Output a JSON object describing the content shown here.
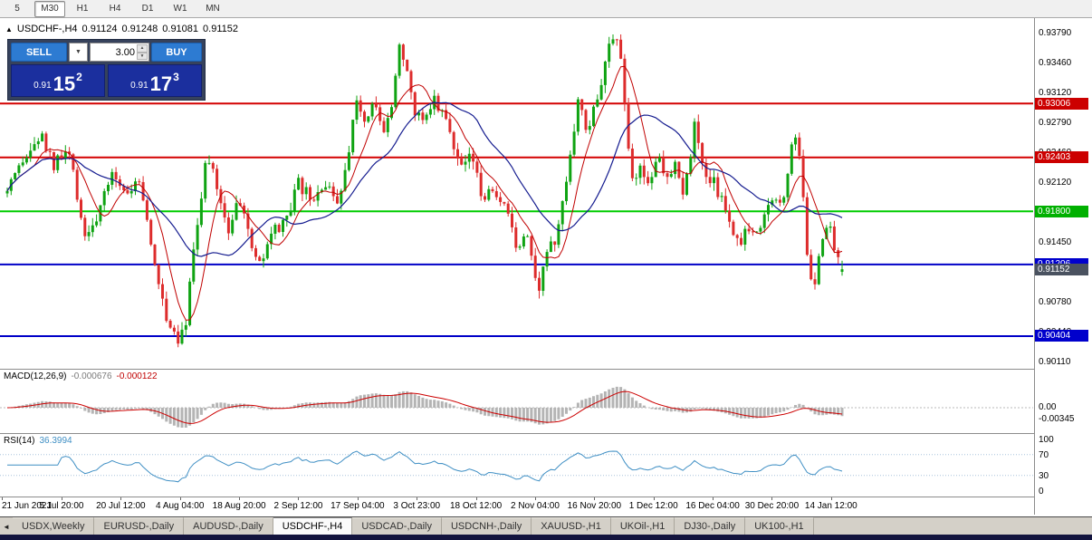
{
  "toolbar": {
    "timeframes": [
      {
        "label": "5",
        "active": false
      },
      {
        "label": "M30",
        "active": true
      },
      {
        "label": "H1",
        "active": false
      },
      {
        "label": "H4",
        "active": false
      },
      {
        "label": "D1",
        "active": false
      },
      {
        "label": "W1",
        "active": false
      },
      {
        "label": "MN",
        "active": false
      }
    ]
  },
  "chart_header": {
    "collapse_icon": "▲",
    "symbol": "USDCHF-,H4",
    "open": "0.91124",
    "high": "0.91248",
    "low": "0.91081",
    "close": "0.91152"
  },
  "trade_panel": {
    "sell_label": "SELL",
    "buy_label": "BUY",
    "order_combo_icon": "▼",
    "lot_value": "3.00",
    "lot_spin_up": "▲",
    "lot_spin_down": "▼",
    "sell_price_small": "0.91",
    "sell_price_big": "15",
    "sell_price_sup": "2",
    "buy_price_small": "0.91",
    "buy_price_big": "17",
    "buy_price_sup": "3"
  },
  "price_axis": {
    "labels": [
      "0.93790",
      "0.93460",
      "0.93120",
      "0.92790",
      "0.92460",
      "0.92120",
      "0.91790",
      "0.91450",
      "0.91120",
      "0.90780",
      "0.90440",
      "0.90110"
    ],
    "tags": [
      {
        "value": "0.93006",
        "price": 0.93006,
        "color": "#cc0000"
      },
      {
        "value": "0.92403",
        "price": 0.92403,
        "color": "#cc0000"
      },
      {
        "value": "0.91800",
        "price": 0.918,
        "color": "#00b000"
      },
      {
        "value": "0.91206",
        "price": 0.91206,
        "color": "#0000cc"
      },
      {
        "value": "0.91152",
        "price": 0.91152,
        "color": "#4a5260"
      },
      {
        "value": "0.90404",
        "price": 0.90404,
        "color": "#0000cc"
      }
    ]
  },
  "indicators": {
    "macd": {
      "label": "MACD(12,26,9)",
      "main_value": "-0.000676",
      "signal_value": "-0.000122",
      "axis_labels": [
        "0.00",
        "-0.00345"
      ]
    },
    "rsi": {
      "label": "RSI(14)",
      "value": "36.3994",
      "axis_labels": [
        "100",
        "70",
        "30",
        "0"
      ]
    }
  },
  "time_axis": {
    "labels": [
      "21 Jun 2021",
      "5 Jul 20:00",
      "20 Jul 12:00",
      "4 Aug 04:00",
      "18 Aug 20:00",
      "2 Sep 12:00",
      "17 Sep 04:00",
      "3 Oct 23:00",
      "18 Oct 12:00",
      "2 Nov 04:00",
      "16 Nov 20:00",
      "1 Dec 12:00",
      "16 Dec 04:00",
      "30 Dec 20:00",
      "14 Jan 12:00"
    ]
  },
  "tab_bar": {
    "scroll_left_icon": "◄",
    "tabs": [
      {
        "label": "USDX,Weekly",
        "active": false
      },
      {
        "label": "EURUSD-,Daily",
        "active": false
      },
      {
        "label": "AUDUSD-,Daily",
        "active": false
      },
      {
        "label": "USDCHF-,H4",
        "active": true
      },
      {
        "label": "USDCAD-,Daily",
        "active": false
      },
      {
        "label": "USDCNH-,Daily",
        "active": false
      },
      {
        "label": "XAUUSD-,H1",
        "active": false
      },
      {
        "label": "UKOil-,H1",
        "active": false
      },
      {
        "label": "DJ30-,Daily",
        "active": false
      },
      {
        "label": "UK100-,H1",
        "active": false
      }
    ]
  },
  "chart_data": {
    "type": "candlestick",
    "symbol": "USDCHF-",
    "timeframe": "H4",
    "ohlc_current": {
      "open": 0.91124,
      "high": 0.91248,
      "low": 0.91081,
      "close": 0.91152
    },
    "y_axis": {
      "max": 0.9379,
      "min": 0.9011,
      "tick_step": 0.0033
    },
    "colors": {
      "bull": "#0fa312",
      "bear": "#dd2c2c"
    },
    "levels": [
      {
        "price": 0.93006,
        "color": "#d40000",
        "width": 2
      },
      {
        "price": 0.92403,
        "color": "#d40000",
        "width": 2
      },
      {
        "price": 0.918,
        "color": "#00cc00",
        "width": 2
      },
      {
        "price": 0.91206,
        "color": "#0000c8",
        "width": 2
      },
      {
        "price": 0.90404,
        "color": "#0000c8",
        "width": 2
      }
    ],
    "overlays": [
      {
        "name": "ma-fast",
        "period": 8,
        "color": "#c00000"
      },
      {
        "name": "ma-slow",
        "period": 21,
        "color": "#141b8f"
      }
    ],
    "candle_count": 216,
    "price_path": [
      [
        0.0,
        0.92
      ],
      [
        0.02,
        0.9235
      ],
      [
        0.04,
        0.9265
      ],
      [
        0.056,
        0.923
      ],
      [
        0.073,
        0.9248
      ],
      [
        0.094,
        0.915
      ],
      [
        0.111,
        0.918
      ],
      [
        0.127,
        0.9225
      ],
      [
        0.143,
        0.92
      ],
      [
        0.159,
        0.9215
      ],
      [
        0.176,
        0.912
      ],
      [
        0.192,
        0.906
      ],
      [
        0.204,
        0.9038
      ],
      [
        0.214,
        0.906
      ],
      [
        0.225,
        0.915
      ],
      [
        0.239,
        0.9243
      ],
      [
        0.252,
        0.9205
      ],
      [
        0.265,
        0.916
      ],
      [
        0.276,
        0.9198
      ],
      [
        0.29,
        0.915
      ],
      [
        0.304,
        0.9116
      ],
      [
        0.317,
        0.9155
      ],
      [
        0.333,
        0.9165
      ],
      [
        0.349,
        0.921
      ],
      [
        0.366,
        0.919
      ],
      [
        0.382,
        0.9213
      ],
      [
        0.395,
        0.918
      ],
      [
        0.409,
        0.925
      ],
      [
        0.417,
        0.9315
      ],
      [
        0.427,
        0.928
      ],
      [
        0.438,
        0.9308
      ],
      [
        0.449,
        0.927
      ],
      [
        0.46,
        0.93
      ],
      [
        0.47,
        0.9368
      ],
      [
        0.479,
        0.933
      ],
      [
        0.488,
        0.929
      ],
      [
        0.499,
        0.9286
      ],
      [
        0.51,
        0.9308
      ],
      [
        0.521,
        0.929
      ],
      [
        0.531,
        0.927
      ],
      [
        0.542,
        0.923
      ],
      [
        0.555,
        0.9243
      ],
      [
        0.568,
        0.92
      ],
      [
        0.582,
        0.9196
      ],
      [
        0.597,
        0.918
      ],
      [
        0.61,
        0.914
      ],
      [
        0.623,
        0.916
      ],
      [
        0.636,
        0.9092
      ],
      [
        0.646,
        0.9135
      ],
      [
        0.659,
        0.915
      ],
      [
        0.672,
        0.9235
      ],
      [
        0.685,
        0.9308
      ],
      [
        0.694,
        0.9262
      ],
      [
        0.705,
        0.93
      ],
      [
        0.718,
        0.9355
      ],
      [
        0.729,
        0.9375
      ],
      [
        0.737,
        0.934
      ],
      [
        0.747,
        0.9212
      ],
      [
        0.758,
        0.923
      ],
      [
        0.768,
        0.921
      ],
      [
        0.779,
        0.9243
      ],
      [
        0.79,
        0.9215
      ],
      [
        0.8,
        0.924
      ],
      [
        0.811,
        0.92
      ],
      [
        0.824,
        0.9278
      ],
      [
        0.835,
        0.9212
      ],
      [
        0.846,
        0.9215
      ],
      [
        0.857,
        0.919
      ],
      [
        0.868,
        0.9162
      ],
      [
        0.879,
        0.915
      ],
      [
        0.889,
        0.9165
      ],
      [
        0.9,
        0.9155
      ],
      [
        0.911,
        0.9185
      ],
      [
        0.922,
        0.9196
      ],
      [
        0.933,
        0.92
      ],
      [
        0.941,
        0.9268
      ],
      [
        0.95,
        0.924
      ],
      [
        0.96,
        0.9112
      ],
      [
        0.967,
        0.9096
      ],
      [
        0.976,
        0.915
      ],
      [
        0.985,
        0.9162
      ],
      [
        0.993,
        0.9135
      ],
      [
        1.0,
        0.91152
      ]
    ],
    "macd": {
      "fast": 12,
      "slow": 26,
      "signal": 9,
      "current_main": -0.000676,
      "current_signal": -0.000122
    },
    "rsi": {
      "period": 14,
      "current": 36.3994
    }
  }
}
